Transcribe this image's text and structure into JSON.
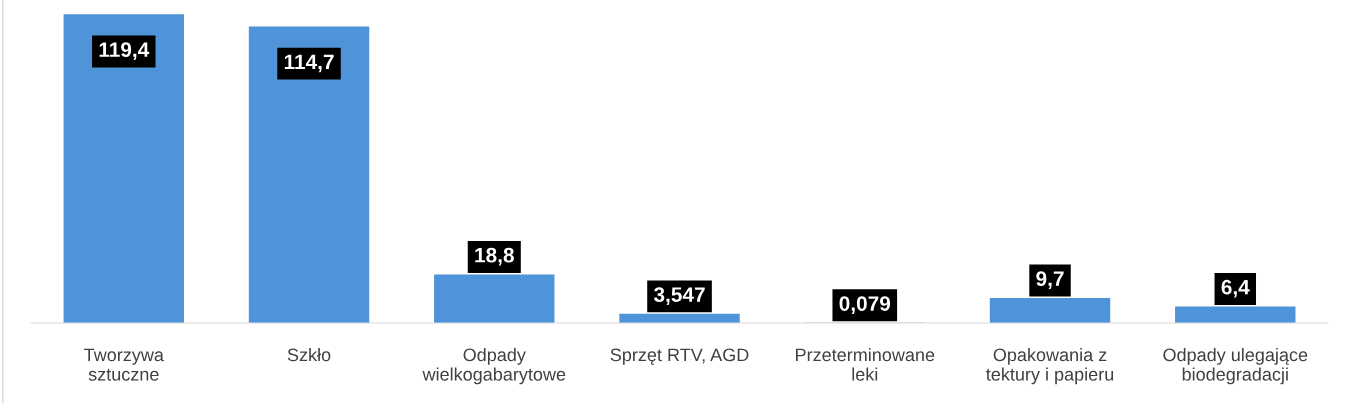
{
  "chart_data": {
    "type": "bar",
    "categories": [
      "Tworzywa\nsztuczne",
      "Szkło",
      "Odpady\nwielkogabarytowe",
      "Sprzęt RTV, AGD",
      "Przeterminowane\nleki",
      "Opakowania z\ntektury i papieru",
      "Odpady ulegające\nbiodegradacji"
    ],
    "values": [
      119.4,
      114.7,
      18.8,
      3.547,
      0.079,
      9.7,
      6.4
    ],
    "value_labels": [
      "119,4",
      "114,7",
      "18,8",
      "3,547",
      "0,079",
      "9,7",
      "6,4"
    ],
    "color": "#4f93d8",
    "ylim": [
      0,
      120
    ],
    "grid": false,
    "legend": false,
    "tick_labels": "x"
  }
}
